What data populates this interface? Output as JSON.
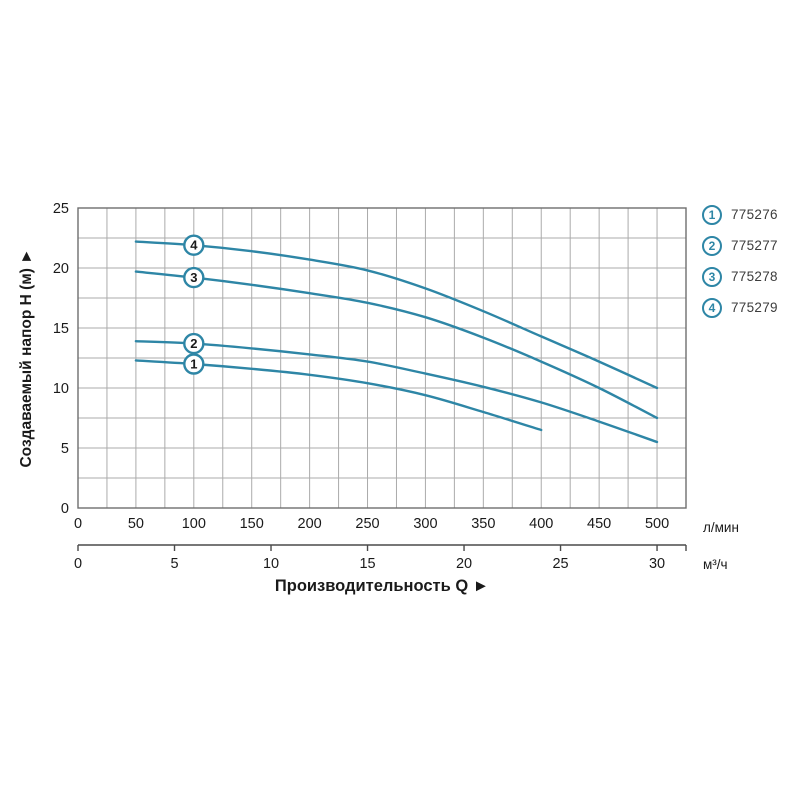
{
  "colors": {
    "curve": "#2e86a6",
    "grid": "#ababab",
    "frame": "#6e6e6e",
    "axis": "#4a4a4a",
    "text": "#1a1a1a",
    "legend_text": "#3c3c3c",
    "background": "#ffffff"
  },
  "labels": {
    "y_title_display": "Создаваемый напор H (м) ►",
    "x_title_display": "Производительность Q ►",
    "unit_primary": "л/мин",
    "unit_secondary": "м³/ч"
  },
  "legend": {
    "items": [
      {
        "num": "1",
        "label": "775276"
      },
      {
        "num": "2",
        "label": "775277"
      },
      {
        "num": "3",
        "label": "775278"
      },
      {
        "num": "4",
        "label": "775279"
      }
    ]
  },
  "chart_data": {
    "type": "line",
    "title": "",
    "xlabel": "Производительность Q",
    "ylabel": "Создаваемый напор H (м)",
    "grid": "on",
    "legend_position": "top-right-outside",
    "x_axis_primary": {
      "unit": "л/мин",
      "ticks": [
        0,
        50,
        100,
        150,
        200,
        250,
        300,
        350,
        400,
        450,
        500
      ],
      "range": [
        0,
        525
      ],
      "grid_step": 25
    },
    "x_axis_secondary": {
      "unit": "м³/ч",
      "ticks": [
        0,
        5,
        10,
        15,
        20,
        25,
        30
      ],
      "scale_lmin_per_unit": 16.6667
    },
    "y_axis": {
      "ticks": [
        0,
        5,
        10,
        15,
        20,
        25
      ],
      "range": [
        0,
        25
      ],
      "grid_step": 2.5
    },
    "marker_at_lmin": 100,
    "series": [
      {
        "num": "1",
        "name": "775276",
        "points": [
          [
            50,
            12.3
          ],
          [
            100,
            12.0
          ],
          [
            150,
            11.6
          ],
          [
            200,
            11.1
          ],
          [
            250,
            10.4
          ],
          [
            300,
            9.4
          ],
          [
            350,
            8.0
          ],
          [
            400,
            6.5
          ]
        ]
      },
      {
        "num": "2",
        "name": "775277",
        "points": [
          [
            50,
            13.9
          ],
          [
            100,
            13.7
          ],
          [
            150,
            13.3
          ],
          [
            200,
            12.8
          ],
          [
            250,
            12.2
          ],
          [
            300,
            11.2
          ],
          [
            350,
            10.1
          ],
          [
            400,
            8.8
          ],
          [
            450,
            7.2
          ],
          [
            500,
            5.5
          ]
        ]
      },
      {
        "num": "3",
        "name": "775278",
        "points": [
          [
            50,
            19.7
          ],
          [
            100,
            19.2
          ],
          [
            150,
            18.6
          ],
          [
            200,
            17.9
          ],
          [
            250,
            17.1
          ],
          [
            300,
            15.9
          ],
          [
            350,
            14.2
          ],
          [
            400,
            12.2
          ],
          [
            450,
            10.0
          ],
          [
            500,
            7.5
          ]
        ]
      },
      {
        "num": "4",
        "name": "775279",
        "points": [
          [
            50,
            22.2
          ],
          [
            100,
            21.9
          ],
          [
            150,
            21.4
          ],
          [
            200,
            20.7
          ],
          [
            250,
            19.8
          ],
          [
            300,
            18.3
          ],
          [
            350,
            16.4
          ],
          [
            400,
            14.3
          ],
          [
            450,
            12.2
          ],
          [
            500,
            10.0
          ]
        ]
      }
    ]
  }
}
